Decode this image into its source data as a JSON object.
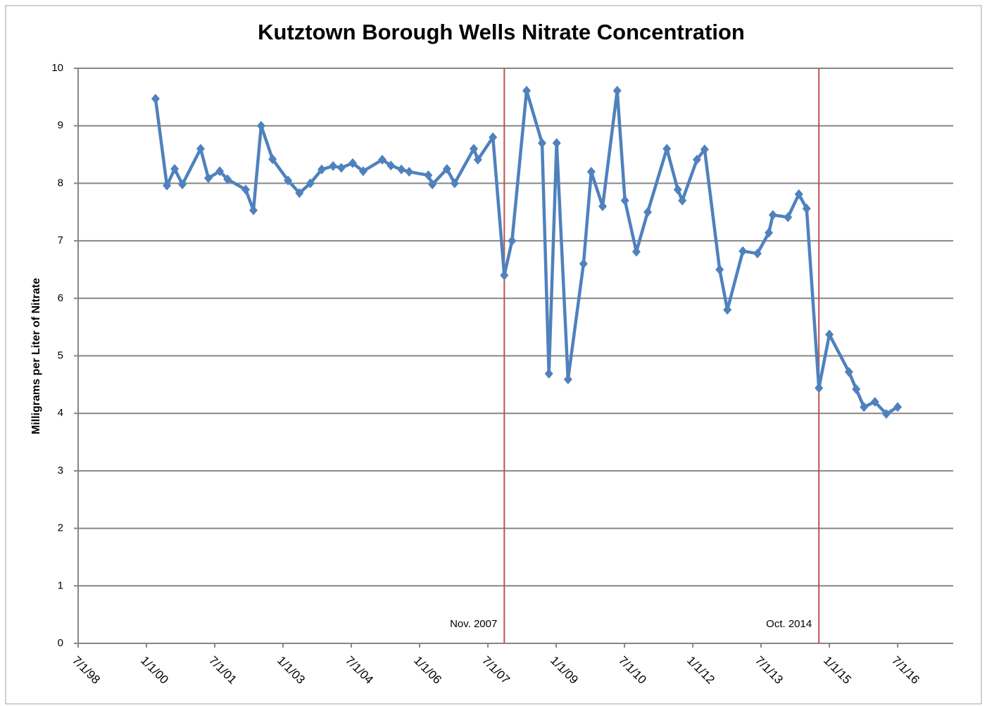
{
  "chart_data": {
    "type": "line",
    "title": "Kutztown Borough Wells Nitrate Concentration",
    "y_label": "Milligrams per Liter of Nitrate",
    "series": [
      {
        "color": "#4f81bd",
        "x": [
          2000.2,
          2000.45,
          2000.62,
          2000.79,
          2001.19,
          2001.36,
          2001.61,
          2001.78,
          2002.18,
          2002.35,
          2002.52,
          2002.77,
          2003.11,
          2003.36,
          2003.6,
          2003.85,
          2004.1,
          2004.28,
          2004.53,
          2004.76,
          2005.18,
          2005.37,
          2005.6,
          2005.77,
          2006.19,
          2006.28,
          2006.6,
          2006.77,
          2007.19,
          2007.28,
          2007.61,
          2007.86,
          2008.03,
          2008.35,
          2008.69,
          2008.84,
          2009.01,
          2009.26,
          2009.6,
          2009.77,
          2010.02,
          2010.34,
          2010.51,
          2010.76,
          2011.01,
          2011.43,
          2011.67,
          2011.77,
          2012.09,
          2012.26,
          2012.59,
          2012.76,
          2013.1,
          2013.42,
          2013.67,
          2013.76,
          2014.09,
          2014.33,
          2014.5,
          2014.77,
          2015.0,
          2015.43,
          2015.59,
          2015.76,
          2016.0,
          2016.25,
          2016.5
        ],
        "values": [
          9.47,
          7.96,
          8.25,
          7.98,
          8.6,
          8.09,
          8.21,
          8.07,
          7.89,
          7.53,
          9.0,
          8.42,
          8.05,
          7.83,
          8.0,
          8.24,
          8.3,
          8.27,
          8.35,
          8.21,
          8.41,
          8.31,
          8.24,
          8.2,
          8.14,
          7.98,
          8.25,
          8.0,
          8.6,
          8.41,
          8.8,
          6.4,
          7.0,
          9.61,
          8.7,
          4.69,
          8.7,
          4.59,
          6.6,
          8.2,
          7.6,
          9.61,
          7.7,
          6.81,
          7.5,
          8.6,
          7.89,
          7.7,
          8.41,
          8.59,
          6.5,
          5.8,
          6.82,
          6.78,
          7.14,
          7.45,
          7.41,
          7.81,
          7.56,
          4.44,
          5.37,
          4.72,
          4.42,
          4.11,
          4.2,
          3.99,
          4.11
        ]
      }
    ],
    "annotations": [
      {
        "label": "Nov. 2007",
        "x": 2007.86,
        "color": "#c0504d"
      },
      {
        "label": "Oct. 2014",
        "x": 2014.77,
        "color": "#c0504d"
      }
    ],
    "xlim": [
      1998.5,
      2017.72
    ],
    "xticks": [
      {
        "value": 1998.5,
        "label": "7/1/98"
      },
      {
        "value": 2000.0,
        "label": "1/1/00"
      },
      {
        "value": 2001.5,
        "label": "7/1/01"
      },
      {
        "value": 2003.0,
        "label": "1/1/03"
      },
      {
        "value": 2004.5,
        "label": "7/1/04"
      },
      {
        "value": 2006.0,
        "label": "1/1/06"
      },
      {
        "value": 2007.5,
        "label": "7/1/07"
      },
      {
        "value": 2009.0,
        "label": "1/1/09"
      },
      {
        "value": 2010.5,
        "label": "7/1/10"
      },
      {
        "value": 2012.0,
        "label": "1/1/12"
      },
      {
        "value": 2013.5,
        "label": "7/1/13"
      },
      {
        "value": 2015.0,
        "label": "1/1/15"
      },
      {
        "value": 2016.5,
        "label": "7/1/16"
      }
    ],
    "ylim": [
      0,
      10
    ],
    "yticks": [
      0,
      1,
      2,
      3,
      4,
      5,
      6,
      7,
      8,
      9,
      10
    ],
    "grid": true
  }
}
